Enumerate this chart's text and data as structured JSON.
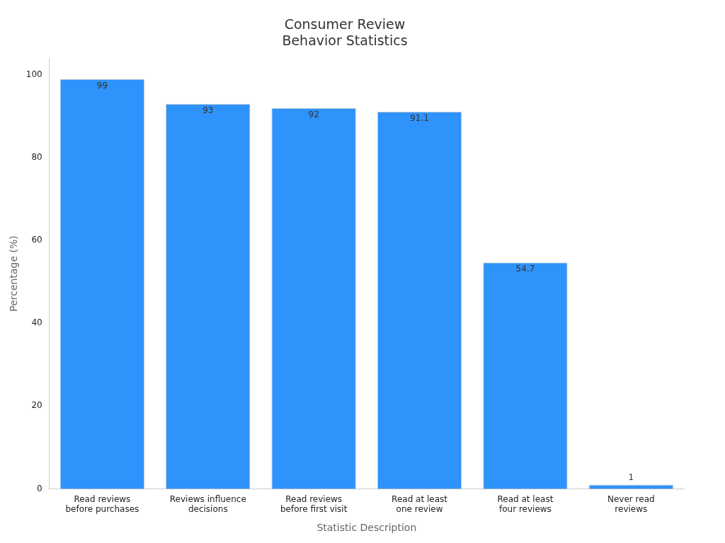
{
  "chart_data": {
    "type": "bar",
    "title": "Consumer Review\nBehavior Statistics",
    "xlabel": "Statistic Description",
    "ylabel": "Percentage (%)",
    "categories": [
      "Read reviews\nbefore purchases",
      "Reviews influence\ndecisions",
      "Read reviews\nbefore first visit",
      "Read at least\none review",
      "Read at least\nfour reviews",
      "Never read\nreviews"
    ],
    "values": [
      99,
      93,
      92,
      91.1,
      54.7,
      1
    ],
    "color": "#2e93fa",
    "ylim": [
      0,
      104
    ],
    "yticks": [
      0,
      20,
      40,
      60,
      80,
      100
    ],
    "grid": false,
    "legend": false,
    "data_labels": true
  }
}
